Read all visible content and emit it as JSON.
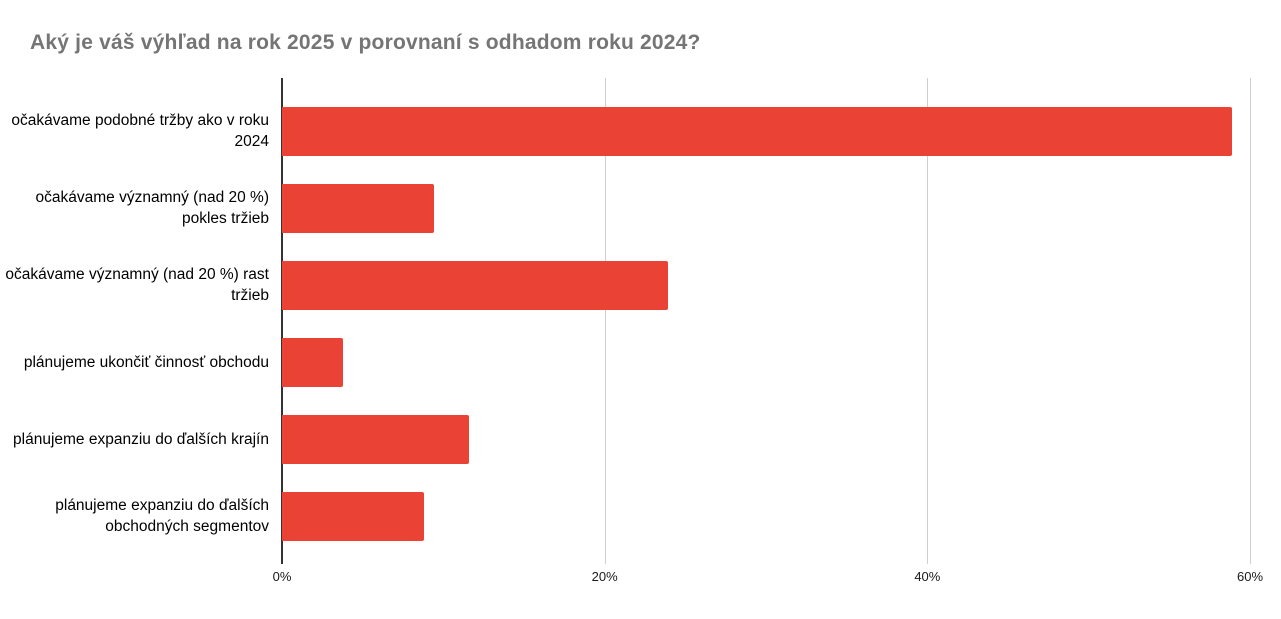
{
  "title": "Aký je váš výhľad na rok 2025 v porovnaní s odhadom roku 2024?",
  "colors": {
    "bar": "#ea4335",
    "title_text": "#757575",
    "axis_baseline": "#333333",
    "gridline": "#cfcfcf",
    "category_text": "#000000",
    "background": "#ffffff"
  },
  "chart_data": {
    "type": "bar",
    "orientation": "horizontal",
    "title": "Aký je váš výhľad na rok 2025 v porovnaní s odhadom roku 2024?",
    "categories": [
      "očakávame podobné tržby ako v roku 2024",
      "očakávame významný (nad 20 %) pokles tržieb",
      "očakávame významný (nad 20 %) rast tržieb",
      "plánujeme ukončiť činnosť obchodu",
      "plánujeme expanziu do ďalších krajín",
      "plánujeme expanziu do ďalších obchodných segmentov"
    ],
    "values": [
      58.9,
      9.4,
      23.9,
      3.8,
      11.6,
      8.8
    ],
    "xlabel": "",
    "ylabel": "",
    "x_ticks": [
      {
        "label": "0%",
        "value": 0
      },
      {
        "label": "20%",
        "value": 20
      },
      {
        "label": "40%",
        "value": 40
      },
      {
        "label": "60%",
        "value": 60
      }
    ],
    "xlim": [
      0,
      60
    ],
    "grid": true,
    "legend": false
  }
}
